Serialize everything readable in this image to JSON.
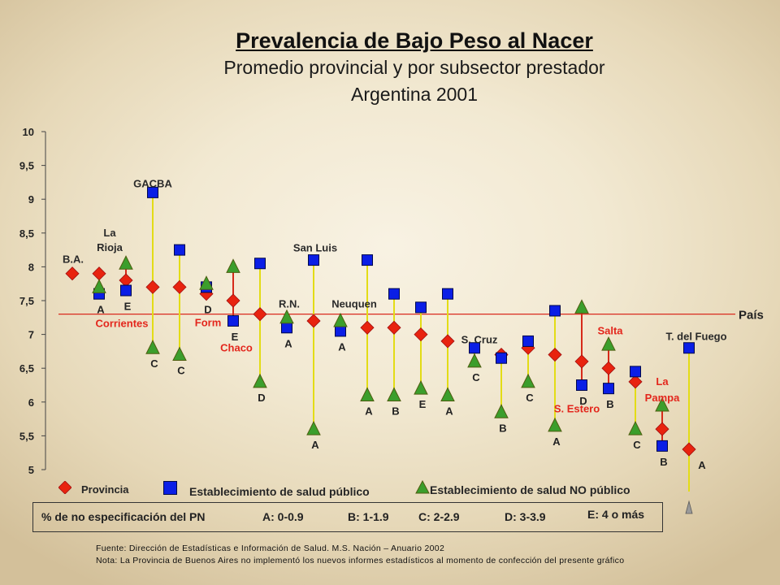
{
  "chart_data": {
    "type": "scatter",
    "title": "Prevalencia de Bajo Peso al Nacer",
    "subtitle": "Promedio provincial y por subsector prestador",
    "subtitle2": "Argentina 2001",
    "ylim": [
      5,
      10
    ],
    "grid": false,
    "legend": "bottom",
    "yticks": [
      {
        "value": 5,
        "label": "5"
      },
      {
        "value": 5.5,
        "label": "5,5"
      },
      {
        "value": 6,
        "label": "6"
      },
      {
        "value": 6.5,
        "label": "6,5"
      },
      {
        "value": 7,
        "label": "7"
      },
      {
        "value": 7.5,
        "label": "7,5"
      },
      {
        "value": 8,
        "label": "8"
      },
      {
        "value": 8.5,
        "label": "8,5"
      },
      {
        "value": 9,
        "label": "9"
      },
      {
        "value": 9.5,
        "label": "9,5"
      },
      {
        "value": 10,
        "label": "10"
      }
    ],
    "reference_line": {
      "label": "País",
      "value": 7.3,
      "color": "#d92a1e"
    },
    "series": [
      {
        "key": "provincia",
        "name": "Provincia",
        "marker": "diamond",
        "color": "#e8230f"
      },
      {
        "key": "publico",
        "name": "Establecimiento de salud público",
        "marker": "square",
        "color": "#0a1ee6"
      },
      {
        "key": "no_publico",
        "name": "Establecimiento de salud NO público",
        "marker": "triangle",
        "color": "#3b9e2c"
      }
    ],
    "connector_colors": {
      "default": "#e3dc16",
      "highlight": "#d62a1a"
    },
    "columns": [
      {
        "label": "B.A.",
        "label_color": "black",
        "provincia": 7.9,
        "publico": null,
        "no_publico": null,
        "code": null
      },
      {
        "label": "La Rioja",
        "label_color": "black",
        "provincia": 7.9,
        "publico": 7.6,
        "no_publico": 7.7,
        "code": "A"
      },
      {
        "label": "Corrientes",
        "label_color": "red",
        "provincia": 7.8,
        "publico": 7.65,
        "no_publico": 8.05,
        "code": "E"
      },
      {
        "label": "GACBA",
        "label_color": "black",
        "provincia": 7.7,
        "publico": 9.1,
        "no_publico": 6.8,
        "code": "C"
      },
      {
        "provincia": 7.7,
        "publico": 8.25,
        "no_publico": 6.7,
        "code": "C"
      },
      {
        "label": "Form",
        "label_color": "red",
        "provincia": 7.6,
        "publico": 7.7,
        "no_publico": 7.75,
        "code": "D"
      },
      {
        "label": "Chaco",
        "label_color": "red",
        "provincia": 7.5,
        "publico": 7.2,
        "no_publico": 8.0,
        "code": "E"
      },
      {
        "provincia": 7.3,
        "publico": 8.05,
        "no_publico": 6.3,
        "code": "D"
      },
      {
        "label": "R.N.",
        "label_color": "black",
        "provincia": null,
        "publico": 7.1,
        "no_publico": 7.25,
        "code": "A"
      },
      {
        "label": "San Luis",
        "label_color": "black",
        "provincia": 7.2,
        "publico": 8.1,
        "no_publico": 5.6,
        "code": "A"
      },
      {
        "label": "Neuquen",
        "label_color": "black",
        "provincia": null,
        "publico": 7.05,
        "no_publico": 7.2,
        "code": "A"
      },
      {
        "provincia": 7.1,
        "publico": 8.1,
        "no_publico": 6.1,
        "code": "A"
      },
      {
        "provincia": 7.1,
        "publico": 7.6,
        "no_publico": 6.1,
        "code": "B"
      },
      {
        "provincia": 7.0,
        "publico": 7.4,
        "no_publico": 6.2,
        "code": "E"
      },
      {
        "provincia": 6.9,
        "publico": 7.6,
        "no_publico": 6.1,
        "code": "A"
      },
      {
        "label": "S. Cruz",
        "label_color": "black",
        "provincia": null,
        "publico": 6.8,
        "no_publico": 6.6,
        "code": "C"
      },
      {
        "provincia": 6.7,
        "publico": 6.65,
        "no_publico": 5.85,
        "code": "B"
      },
      {
        "provincia": 6.8,
        "publico": 6.9,
        "no_publico": 6.3,
        "code": "C"
      },
      {
        "provincia": 6.7,
        "publico": 7.35,
        "no_publico": 5.65,
        "code": "A"
      },
      {
        "label": "S. Estero",
        "label_color": "red",
        "provincia": 6.6,
        "publico": 6.25,
        "no_publico": 7.4,
        "code": "D"
      },
      {
        "label": "Salta",
        "label_color": "red",
        "provincia": 6.5,
        "publico": 6.2,
        "no_publico": 6.85,
        "code": "B"
      },
      {
        "provincia": 6.3,
        "publico": 6.45,
        "no_publico": 5.6,
        "code": "C"
      },
      {
        "label": "La Pampa",
        "label_color": "red",
        "provincia": 5.6,
        "publico": 5.35,
        "no_publico": 5.95,
        "code": "B"
      },
      {
        "label": "T. del Fuego",
        "label_color": "black",
        "provincia": 5.3,
        "publico": 6.8,
        "no_publico": null,
        "code": "A"
      }
    ]
  },
  "code_box": {
    "title": "% de no especificación del PN",
    "items": [
      "A: 0-0.9",
      "B: 1-1.9",
      "C: 2-2.9",
      "D: 3-3.9",
      "E: 4 o más"
    ]
  },
  "footer": {
    "source": "Fuente: Dirección de Estadísticas e Información de Salud. M.S. Nación – Anuario 2002",
    "note": "Nota: La Provincia de Buenos Aires no implementó los nuevos informes estadísticos al momento de confección del presente gráfico"
  }
}
